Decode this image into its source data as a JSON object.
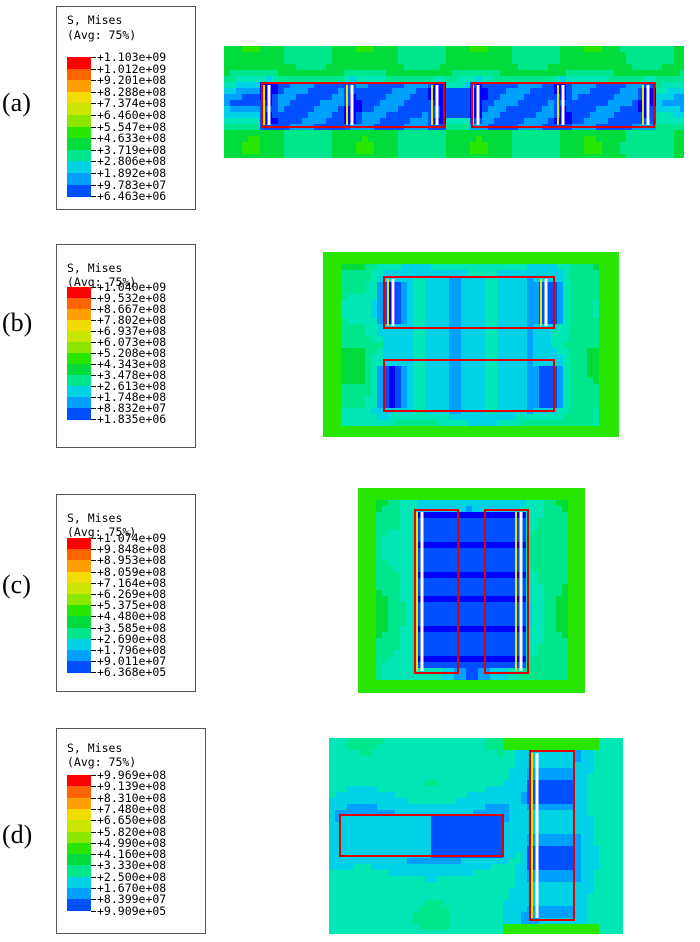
{
  "palette": [
    "#0000ff",
    "#0050ff",
    "#00a0ff",
    "#00d2e6",
    "#00e6b4",
    "#00e68c",
    "#00dc3c",
    "#28e600",
    "#8ce600",
    "#c8e600",
    "#f0dc00",
    "#ffa000",
    "#ff6400",
    "#ff0000"
  ],
  "overlay_colors": {
    "outline": "#e00000",
    "bar": "#ffffff"
  },
  "panels": [
    {
      "label": "(a)",
      "legend": {
        "title": "S, Mises",
        "subtitle": "(Avg: 75%)",
        "values": [
          "+1.103e+09",
          "+1.012e+09",
          "+9.201e+08",
          "+8.288e+08",
          "+7.374e+08",
          "+6.460e+08",
          "+5.547e+08",
          "+4.633e+08",
          "+3.719e+08",
          "+2.806e+08",
          "+1.892e+08",
          "+9.783e+07",
          "+6.463e+06"
        ]
      }
    },
    {
      "label": "(b)",
      "legend": {
        "title": "S, Mises",
        "subtitle": "(Avg: 75%)",
        "values": [
          "+1.040e+09",
          "+9.532e+08",
          "+8.667e+08",
          "+7.802e+08",
          "+6.937e+08",
          "+6.073e+08",
          "+5.208e+08",
          "+4.343e+08",
          "+3.478e+08",
          "+2.613e+08",
          "+1.748e+08",
          "+8.832e+07",
          "+1.835e+06"
        ]
      }
    },
    {
      "label": "(c)",
      "legend": {
        "title": "S, Mises",
        "subtitle": "(Avg: 75%)",
        "values": [
          "+1.074e+09",
          "+9.848e+08",
          "+8.953e+08",
          "+8.059e+08",
          "+7.164e+08",
          "+6.269e+08",
          "+5.375e+08",
          "+4.480e+08",
          "+3.585e+08",
          "+2.690e+08",
          "+1.796e+08",
          "+9.011e+07",
          "+6.368e+05"
        ]
      }
    },
    {
      "label": "(d)",
      "legend": {
        "title": "S, Mises",
        "subtitle": "(Avg: 75%)",
        "values": [
          "+9.969e+08",
          "+9.139e+08",
          "+8.310e+08",
          "+7.480e+08",
          "+6.650e+08",
          "+5.820e+08",
          "+4.990e+08",
          "+4.160e+08",
          "+3.330e+08",
          "+2.500e+08",
          "+1.670e+08",
          "+8.399e+07",
          "+9.909e+05"
        ]
      }
    }
  ]
}
